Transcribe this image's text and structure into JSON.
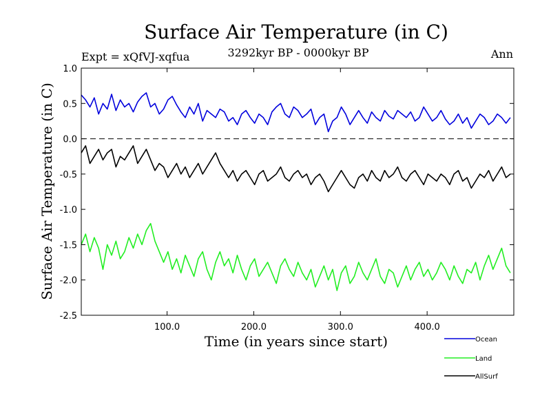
{
  "header": {
    "title": "Surface Air Temperature (in C)",
    "experiment": "Expt = xQfVJ-xqfua",
    "period": "3292kyr BP - 0000kyr BP",
    "season": "Ann"
  },
  "chart_data": {
    "type": "line",
    "title": "Surface Air Temperature (in C)",
    "xlabel": "Time (in years since start)",
    "ylabel": "Surface Air Temperature (in C)",
    "xlim": [
      1,
      500
    ],
    "ylim": [
      -2.5,
      1.0
    ],
    "x_ticks": [
      100,
      200,
      300,
      400
    ],
    "x_tick_labels": [
      "100.0",
      "200.0",
      "300.0",
      "400.0"
    ],
    "y_ticks": [
      1.0,
      0.5,
      0.0,
      -0.5,
      -1.0,
      -1.5,
      -2.0,
      -2.5
    ],
    "y_tick_labels": [
      "1.0",
      "0.5",
      "0.0",
      "-0.5",
      "-1.0",
      "-1.5",
      "-2.0",
      "-2.5"
    ],
    "zero_line": "dashed",
    "legend_position": "bottom-right, outside plot",
    "x_step": 5,
    "series": [
      {
        "name": "Ocean",
        "color": "#0000dd",
        "values": [
          0.62,
          0.55,
          0.45,
          0.58,
          0.35,
          0.5,
          0.42,
          0.63,
          0.4,
          0.55,
          0.45,
          0.5,
          0.38,
          0.52,
          0.6,
          0.65,
          0.45,
          0.5,
          0.35,
          0.42,
          0.55,
          0.6,
          0.48,
          0.38,
          0.3,
          0.45,
          0.35,
          0.5,
          0.25,
          0.4,
          0.35,
          0.3,
          0.42,
          0.38,
          0.25,
          0.3,
          0.2,
          0.35,
          0.4,
          0.3,
          0.22,
          0.35,
          0.3,
          0.2,
          0.38,
          0.45,
          0.5,
          0.35,
          0.3,
          0.45,
          0.4,
          0.3,
          0.35,
          0.42,
          0.2,
          0.3,
          0.35,
          0.1,
          0.25,
          0.3,
          0.45,
          0.35,
          0.2,
          0.3,
          0.4,
          0.3,
          0.22,
          0.38,
          0.3,
          0.25,
          0.4,
          0.32,
          0.28,
          0.4,
          0.35,
          0.3,
          0.38,
          0.25,
          0.3,
          0.45,
          0.35,
          0.25,
          0.3,
          0.4,
          0.28,
          0.2,
          0.25,
          0.35,
          0.22,
          0.3,
          0.15,
          0.25,
          0.35,
          0.3,
          0.2,
          0.25,
          0.35,
          0.3,
          0.22,
          0.3
        ],
        "dx": 5
      },
      {
        "name": "AllSurf",
        "color": "#000000",
        "values": [
          -0.2,
          -0.1,
          -0.35,
          -0.25,
          -0.15,
          -0.3,
          -0.2,
          -0.15,
          -0.4,
          -0.25,
          -0.3,
          -0.2,
          -0.1,
          -0.35,
          -0.25,
          -0.15,
          -0.3,
          -0.45,
          -0.35,
          -0.4,
          -0.55,
          -0.45,
          -0.35,
          -0.5,
          -0.4,
          -0.55,
          -0.45,
          -0.35,
          -0.5,
          -0.4,
          -0.3,
          -0.2,
          -0.35,
          -0.45,
          -0.55,
          -0.45,
          -0.6,
          -0.5,
          -0.45,
          -0.55,
          -0.65,
          -0.5,
          -0.45,
          -0.6,
          -0.55,
          -0.5,
          -0.4,
          -0.55,
          -0.6,
          -0.5,
          -0.45,
          -0.55,
          -0.5,
          -0.65,
          -0.55,
          -0.5,
          -0.6,
          -0.75,
          -0.65,
          -0.55,
          -0.45,
          -0.55,
          -0.65,
          -0.7,
          -0.55,
          -0.5,
          -0.6,
          -0.45,
          -0.55,
          -0.6,
          -0.45,
          -0.55,
          -0.5,
          -0.4,
          -0.55,
          -0.6,
          -0.5,
          -0.45,
          -0.55,
          -0.65,
          -0.5,
          -0.55,
          -0.6,
          -0.5,
          -0.55,
          -0.65,
          -0.5,
          -0.45,
          -0.6,
          -0.55,
          -0.7,
          -0.6,
          -0.5,
          -0.55,
          -0.45,
          -0.6,
          -0.5,
          -0.4,
          -0.55,
          -0.5
        ],
        "dx": 5
      },
      {
        "name": "Land",
        "color": "#22ee22",
        "values": [
          -1.5,
          -1.35,
          -1.6,
          -1.4,
          -1.55,
          -1.85,
          -1.5,
          -1.65,
          -1.45,
          -1.7,
          -1.6,
          -1.4,
          -1.55,
          -1.35,
          -1.5,
          -1.3,
          -1.2,
          -1.45,
          -1.6,
          -1.75,
          -1.6,
          -1.85,
          -1.7,
          -1.9,
          -1.65,
          -1.8,
          -1.95,
          -1.7,
          -1.6,
          -1.85,
          -2.0,
          -1.75,
          -1.6,
          -1.8,
          -1.7,
          -1.9,
          -1.65,
          -1.85,
          -2.0,
          -1.8,
          -1.7,
          -1.95,
          -1.85,
          -1.75,
          -1.9,
          -2.05,
          -1.8,
          -1.7,
          -1.85,
          -1.95,
          -1.75,
          -1.9,
          -2.0,
          -1.85,
          -2.1,
          -1.95,
          -1.8,
          -2.0,
          -1.85,
          -2.15,
          -1.9,
          -1.8,
          -2.05,
          -1.95,
          -1.75,
          -1.9,
          -2.0,
          -1.85,
          -1.7,
          -1.95,
          -2.05,
          -1.85,
          -1.9,
          -2.1,
          -1.95,
          -1.8,
          -2.0,
          -1.85,
          -1.75,
          -1.95,
          -1.85,
          -2.0,
          -1.9,
          -1.75,
          -1.85,
          -2.0,
          -1.8,
          -1.95,
          -2.05,
          -1.85,
          -1.9,
          -1.75,
          -2.0,
          -1.8,
          -1.65,
          -1.85,
          -1.7,
          -1.55,
          -1.8,
          -1.9
        ],
        "dx": 5
      }
    ]
  }
}
